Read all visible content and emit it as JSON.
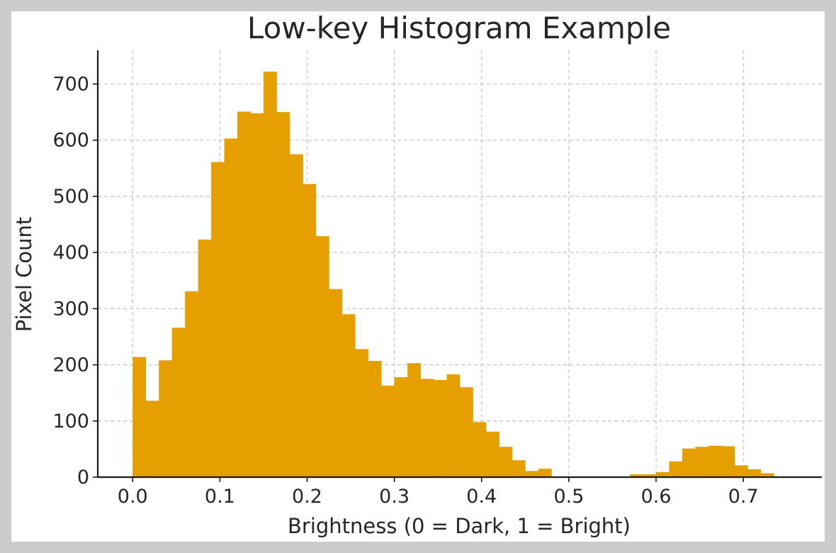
{
  "chart_data": {
    "type": "bar",
    "title": "Low-key Histogram Example",
    "xlabel": "Brightness (0 = Dark, 1 = Bright)",
    "ylabel": "Pixel Count",
    "xlim": [
      -0.04,
      0.79
    ],
    "ylim": [
      0,
      760
    ],
    "xticks": [
      0.0,
      0.1,
      0.2,
      0.3,
      0.4,
      0.5,
      0.6,
      0.7
    ],
    "xtick_labels": [
      "0.0",
      "0.1",
      "0.2",
      "0.3",
      "0.4",
      "0.5",
      "0.6",
      "0.7"
    ],
    "yticks": [
      0,
      100,
      200,
      300,
      400,
      500,
      600,
      700
    ],
    "ytick_labels": [
      "0",
      "100",
      "200",
      "300",
      "400",
      "500",
      "600",
      "700"
    ],
    "grid": true,
    "bar_color": "#e69f00",
    "bin_width": 0.015,
    "bin_start": 0.0,
    "values": [
      214,
      136,
      208,
      266,
      331,
      423,
      561,
      603,
      651,
      648,
      722,
      650,
      575,
      522,
      429,
      335,
      290,
      228,
      207,
      163,
      178,
      203,
      175,
      173,
      183,
      160,
      98,
      81,
      54,
      30,
      11,
      15,
      0,
      0,
      0,
      0,
      0,
      0,
      5,
      5,
      9,
      28,
      51,
      54,
      56,
      55,
      21,
      14,
      7
    ]
  }
}
